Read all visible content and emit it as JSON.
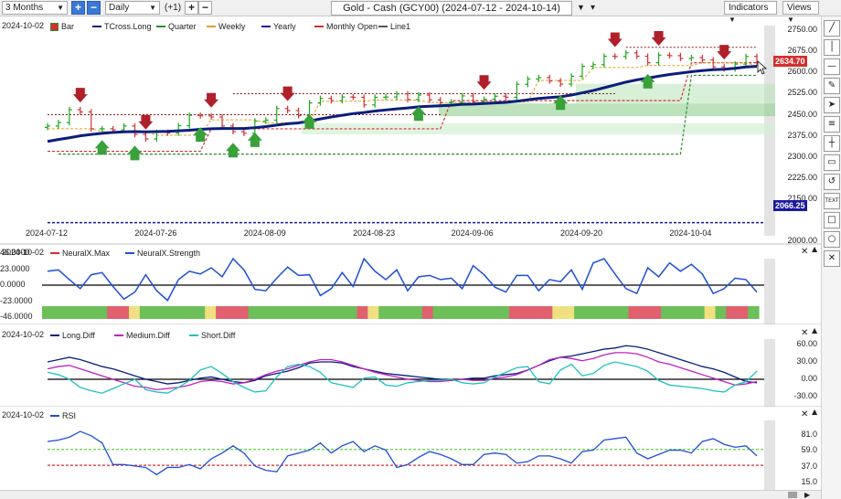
{
  "toolbar": {
    "range": "3 Months",
    "interval": "Daily",
    "plus_label": "+",
    "minus_label": "−",
    "step": "(+1)",
    "title": "Gold - Cash (GCY00) (2024-07-12 - 2024-10-14)",
    "indicators": "Indicators",
    "views": "Views"
  },
  "main_pane": {
    "date_label": "2024-10-02",
    "legend": [
      {
        "label": "Bar",
        "color": "#d32f2f",
        "style": "box"
      },
      {
        "label": "TCross.Long",
        "color": "#0a1f7a",
        "style": "solid"
      },
      {
        "label": "Quarter",
        "color": "#2e8b2e",
        "style": "dashed"
      },
      {
        "label": "Weekly",
        "color": "#e6a020",
        "style": "dashed"
      },
      {
        "label": "Yearly",
        "color": "#1a1aa0",
        "style": "dashed"
      },
      {
        "label": "Monthly Open",
        "color": "#d32f2f",
        "style": "dashed"
      },
      {
        "label": "Line1",
        "color": "#555555",
        "style": "solid"
      }
    ],
    "y_ticks": [
      "2750.00",
      "2675.00",
      "2600.00",
      "2525.00",
      "2450.00",
      "2375.00",
      "2300.00",
      "2225.00",
      "2150.00",
      "2000.00"
    ],
    "x_ticks": [
      "2024-07-12",
      "2024-07-26",
      "2024-08-09",
      "2024-08-23",
      "2024-09-06",
      "2024-09-20",
      "2024-10-04"
    ],
    "last_price": "2634.70",
    "yearly_price": "2066.25"
  },
  "neuralx_pane": {
    "date_label": "2024-10-02",
    "legend": [
      {
        "label": "NeuralX.Max",
        "color": "#d32f2f"
      },
      {
        "label": "NeuralX.Strength",
        "color": "#1e4fd8"
      }
    ],
    "y_ticks": [
      "46.0000",
      "23.0000",
      "0.0000",
      "-23.0000",
      "-46.0000"
    ]
  },
  "diff_pane": {
    "date_label": "2024-10-02",
    "legend": [
      {
        "label": "Long.Diff",
        "color": "#0a1f7a"
      },
      {
        "label": "Medium.Diff",
        "color": "#c020c0"
      },
      {
        "label": "Short.Diff",
        "color": "#20c0c0"
      }
    ],
    "y_ticks": [
      "60.00",
      "30.00",
      "0.00",
      "-30.00"
    ]
  },
  "rsi_pane": {
    "date_label": "2024-10-02",
    "legend": [
      {
        "label": "RSI",
        "color": "#1e4fd8"
      }
    ],
    "y_ticks": [
      "81.0",
      "59.0",
      "37.0",
      "15.0"
    ]
  },
  "sidebar_icons": [
    "diagonal-line-icon",
    "vertical-line-icon",
    "horizontal-line-icon",
    "pencil-icon",
    "arrow-icon",
    "fibonacci-icon",
    "crosshair-icon",
    "note-icon",
    "undo-icon",
    "text-icon",
    "rectangle-icon",
    "ellipse-icon",
    "close-icon"
  ],
  "sidebar_glyphs": [
    "╱",
    "│",
    "—",
    "✎",
    "➤",
    "≡",
    "┼",
    "▭",
    "↺",
    "TEXT",
    "□",
    "○",
    "✕"
  ],
  "chart_data": {
    "type": "line",
    "title": "Gold - Cash (GCY00) (2024-07-12 - 2024-10-14)",
    "x": [
      "2024-07-12",
      "2024-07-15",
      "2024-07-16",
      "2024-07-17",
      "2024-07-18",
      "2024-07-19",
      "2024-07-22",
      "2024-07-23",
      "2024-07-24",
      "2024-07-25",
      "2024-07-26",
      "2024-07-29",
      "2024-07-30",
      "2024-07-31",
      "2024-08-01",
      "2024-08-02",
      "2024-08-05",
      "2024-08-06",
      "2024-08-07",
      "2024-08-08",
      "2024-08-09",
      "2024-08-12",
      "2024-08-13",
      "2024-08-14",
      "2024-08-15",
      "2024-08-16",
      "2024-08-19",
      "2024-08-20",
      "2024-08-21",
      "2024-08-22",
      "2024-08-23",
      "2024-08-26",
      "2024-08-27",
      "2024-08-28",
      "2024-08-29",
      "2024-08-30",
      "2024-09-03",
      "2024-09-04",
      "2024-09-05",
      "2024-09-06",
      "2024-09-09",
      "2024-09-10",
      "2024-09-11",
      "2024-09-12",
      "2024-09-13",
      "2024-09-16",
      "2024-09-17",
      "2024-09-18",
      "2024-09-19",
      "2024-09-20",
      "2024-09-23",
      "2024-09-24",
      "2024-09-25",
      "2024-09-26",
      "2024-09-27",
      "2024-09-30",
      "2024-10-01",
      "2024-10-02",
      "2024-10-03",
      "2024-10-04",
      "2024-10-07",
      "2024-10-08",
      "2024-10-09",
      "2024-10-10",
      "2024-10-11",
      "2024-10-14"
    ],
    "series": [
      {
        "name": "Bar",
        "values": [
          2410,
          2422,
          2468,
          2460,
          2400,
          2400,
          2396,
          2410,
          2380,
          2364,
          2387,
          2385,
          2411,
          2448,
          2446,
          2442,
          2410,
          2390,
          2384,
          2427,
          2431,
          2472,
          2465,
          2447,
          2492,
          2508,
          2500,
          2513,
          2512,
          2485,
          2512,
          2513,
          2524,
          2504,
          2520,
          2503,
          2493,
          2495,
          2517,
          2497,
          2505,
          2516,
          2512,
          2558,
          2577,
          2582,
          2570,
          2559,
          2587,
          2622,
          2628,
          2658,
          2657,
          2670,
          2658,
          2635,
          2662,
          2660,
          2650,
          2653,
          2645,
          2620,
          2613,
          2630,
          2657,
          2634
        ]
      },
      {
        "name": "TCross.Long",
        "values": [
          2355,
          2362,
          2368,
          2375,
          2380,
          2384,
          2387,
          2389,
          2390,
          2389,
          2390,
          2391,
          2393,
          2395,
          2398,
          2400,
          2401,
          2401,
          2401,
          2404,
          2408,
          2413,
          2418,
          2421,
          2428,
          2435,
          2442,
          2448,
          2454,
          2458,
          2463,
          2467,
          2471,
          2474,
          2478,
          2480,
          2482,
          2484,
          2487,
          2488,
          2490,
          2492,
          2494,
          2498,
          2503,
          2508,
          2511,
          2514,
          2520,
          2528,
          2536,
          2546,
          2556,
          2566,
          2574,
          2580,
          2587,
          2593,
          2598,
          2603,
          2607,
          2610,
          2612,
          2615,
          2620,
          2622
        ]
      }
    ],
    "ylim": [
      2000,
      2780
    ],
    "grid": false
  }
}
